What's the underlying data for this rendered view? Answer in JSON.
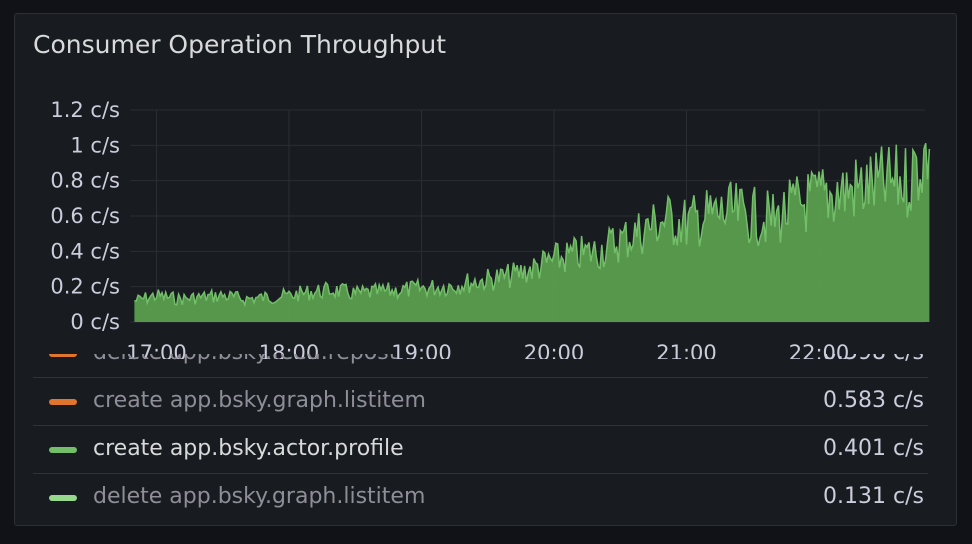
{
  "panel": {
    "title": "Consumer Operation Throughput"
  },
  "colors": {
    "series_fill": "#5a9e4f",
    "series_line": "#73bf69",
    "grid": "#2a2d33",
    "orange": "#e0752d",
    "green": "#73bf69",
    "light_green": "#96d98d"
  },
  "chart_data": {
    "type": "area",
    "ylabel": "",
    "xlabel": "",
    "ylim": [
      0,
      1.2
    ],
    "y_ticks": [
      "0 c/s",
      "0.2 c/s",
      "0.4 c/s",
      "0.6 c/s",
      "0.8 c/s",
      "1 c/s",
      "1.2 c/s"
    ],
    "x_ticks": [
      "17:00",
      "18:00",
      "19:00",
      "20:00",
      "21:00",
      "22:00"
    ],
    "grid": true,
    "series": [
      {
        "name": "create app.bsky.actor.profile",
        "x_time": [
          "16:50",
          "17:00",
          "17:10",
          "17:20",
          "17:30",
          "17:40",
          "17:50",
          "18:00",
          "18:10",
          "18:20",
          "18:30",
          "18:40",
          "18:50",
          "19:00",
          "19:10",
          "19:20",
          "19:30",
          "19:40",
          "19:50",
          "20:00",
          "20:10",
          "20:20",
          "20:30",
          "20:40",
          "20:50",
          "21:00",
          "21:10",
          "21:20",
          "21:30",
          "21:40",
          "21:50",
          "22:00",
          "22:10",
          "22:20",
          "22:30",
          "22:40",
          "22:50"
        ],
        "values": [
          0.12,
          0.15,
          0.13,
          0.14,
          0.15,
          0.13,
          0.14,
          0.15,
          0.17,
          0.18,
          0.16,
          0.17,
          0.18,
          0.19,
          0.2,
          0.22,
          0.24,
          0.26,
          0.3,
          0.35,
          0.38,
          0.4,
          0.46,
          0.52,
          0.58,
          0.56,
          0.6,
          0.62,
          0.6,
          0.58,
          0.66,
          0.7,
          0.74,
          0.76,
          0.78,
          0.8,
          0.98
        ]
      }
    ]
  },
  "legend": {
    "items": [
      {
        "label": "delete app.bsky.feed.repost",
        "value": "0.598 c/s",
        "color": "#e0752d"
      },
      {
        "label": "create app.bsky.graph.listitem",
        "value": "0.583 c/s",
        "color": "#e0752d"
      },
      {
        "label": "create app.bsky.actor.profile",
        "value": "0.401 c/s",
        "color": "#73bf69"
      },
      {
        "label": "delete app.bsky.graph.listitem",
        "value": "0.131 c/s",
        "color": "#96d98d"
      }
    ]
  }
}
